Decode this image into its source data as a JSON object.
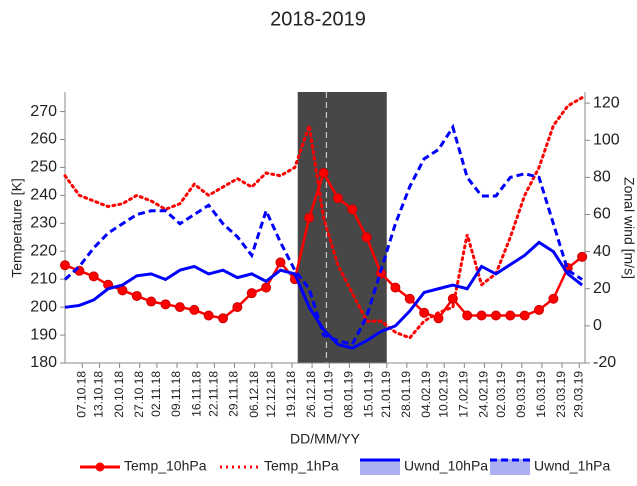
{
  "chart_data": {
    "type": "line",
    "title": "2018-2019",
    "x_label": "DD/MM/YY",
    "y_label": "Temperature [K]",
    "y2_label": "Zonal wind [m/s]",
    "x": [
      "01.10.18",
      "06.10.18",
      "11.10.18",
      "16.10.18",
      "21.10.18",
      "26.10.18",
      "31.10.18",
      "05.11.18",
      "10.11.18",
      "15.11.18",
      "20.11.18",
      "25.11.18",
      "30.11.18",
      "05.12.18",
      "10.12.18",
      "15.12.18",
      "20.12.18",
      "25.12.18",
      "30.12.18",
      "04.01.19",
      "09.01.19",
      "14.01.19",
      "19.01.19",
      "24.01.19",
      "29.01.19",
      "03.02.19",
      "08.02.19",
      "13.02.19",
      "18.02.19",
      "23.02.19",
      "28.02.19",
      "05.03.19",
      "10.03.19",
      "15.03.19",
      "20.03.19",
      "25.03.19",
      "30.03.19"
    ],
    "series": [
      {
        "name": "Temp_10hPa",
        "color": "#ff0000",
        "style": "line-markers",
        "values": [
          215,
          213,
          211,
          208,
          206,
          204,
          202,
          201,
          200,
          199,
          197,
          196,
          200,
          205,
          207,
          216,
          210,
          232,
          248,
          239,
          235,
          225,
          212,
          207,
          203,
          198,
          196,
          203,
          197,
          197,
          197,
          197,
          197,
          199,
          203,
          214,
          218
        ]
      },
      {
        "name": "Temp_1hPa",
        "color": "#ff0000",
        "style": "dotted",
        "values": [
          247,
          240,
          238,
          236,
          237,
          240,
          238,
          235,
          237,
          244,
          240,
          243,
          246,
          243,
          248,
          247,
          250,
          265,
          232,
          215,
          205,
          195,
          195,
          191,
          189,
          195,
          198,
          200,
          226,
          208,
          212,
          225,
          240,
          250,
          265,
          272,
          275
        ]
      },
      {
        "name": "Uwnd_10hPa",
        "color": "#0000ff",
        "style": "solid",
        "axis": "y2",
        "values": [
          10,
          11,
          14,
          20,
          22,
          27,
          28,
          25,
          30,
          32,
          28,
          30,
          26,
          28,
          24,
          30,
          28,
          10,
          -2,
          -10,
          -12,
          -8,
          -3,
          0,
          8,
          18,
          20,
          22,
          20,
          32,
          28,
          33,
          38,
          45,
          40,
          28,
          22
        ]
      },
      {
        "name": "Uwnd_1hPa",
        "color": "#0000ff",
        "style": "dashed",
        "axis": "y2",
        "values": [
          25,
          32,
          42,
          50,
          55,
          60,
          62,
          62,
          55,
          60,
          65,
          55,
          48,
          38,
          62,
          45,
          30,
          20,
          -5,
          -8,
          -10,
          5,
          30,
          55,
          75,
          90,
          95,
          107,
          80,
          70,
          70,
          80,
          82,
          80,
          55,
          30,
          25
        ]
      }
    ],
    "xlim": [
      "01.10.18",
      "31.03.19"
    ],
    "xticks": [
      "07.10.18",
      "13.10.18",
      "20.10.18",
      "27.10.18",
      "02.11.18",
      "09.11.18",
      "16.11.18",
      "22.11.18",
      "29.11.18",
      "06.12.18",
      "12.12.18",
      "19.12.18",
      "26.12.18",
      "01.01.19",
      "08.01.19",
      "15.01.19",
      "21.01.19",
      "28.01.19",
      "04.02.19",
      "10.02.19",
      "17.02.19",
      "24.02.19",
      "02.03.19",
      "09.03.19",
      "16.03.19",
      "23.03.19",
      "29.03.19"
    ],
    "ylim": [
      180,
      277
    ],
    "yticks": [
      180,
      190,
      200,
      210,
      220,
      230,
      240,
      250,
      260,
      270
    ],
    "y2lim": [
      -20,
      126
    ],
    "y2ticks": [
      -20,
      0,
      20,
      40,
      60,
      80,
      100,
      120
    ],
    "highlight": {
      "start": "21.12.18",
      "end": "21.01.19",
      "line": "31.12.18",
      "color": "#474747"
    },
    "legend": "bottom"
  }
}
